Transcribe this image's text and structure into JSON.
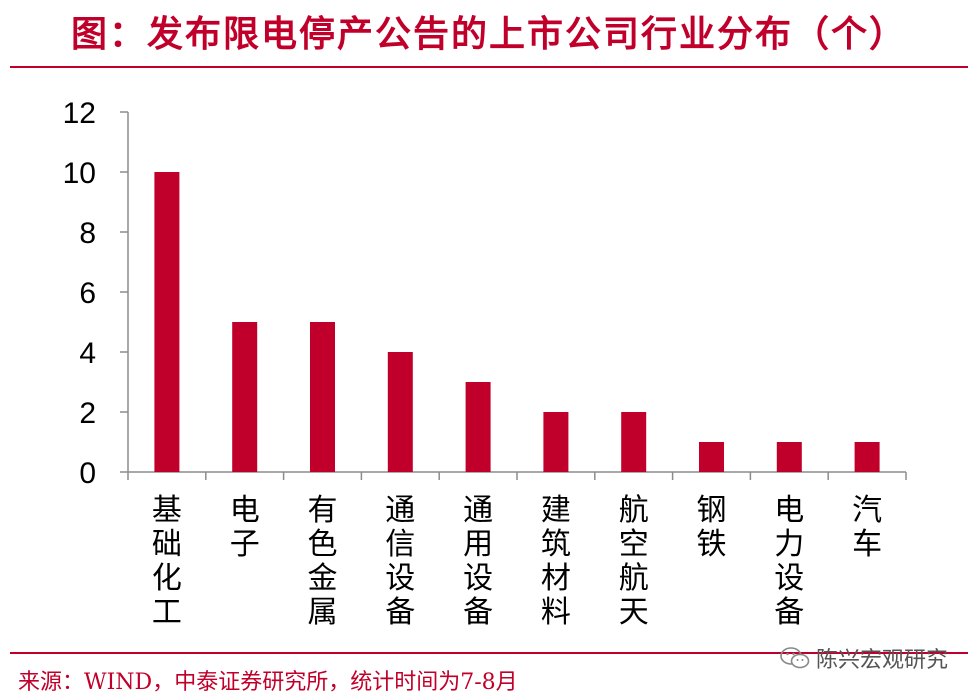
{
  "header": {
    "title": "图：发布限电停产公告的上市公司行业分布（个）"
  },
  "footer": {
    "source": "来源：WIND，中泰证券研究所，统计时间为7-8月",
    "watermark": "陈兴宏观研究",
    "watermark_icon": "wechat-icon"
  },
  "colors": {
    "accent": "#c0002a",
    "bar": "#c0002a"
  },
  "chart_data": {
    "type": "bar",
    "title": "图：发布限电停产公告的上市公司行业分布（个）",
    "categories": [
      "基础化工",
      "电子",
      "有色金属",
      "通信设备",
      "通用设备",
      "建筑材料",
      "航空航天",
      "钢铁",
      "电力设备",
      "汽车"
    ],
    "values": [
      10,
      5,
      5,
      4,
      3,
      2,
      2,
      1,
      1,
      1
    ],
    "ylim": [
      0,
      12
    ],
    "yticks": [
      0,
      2,
      4,
      6,
      8,
      10,
      12
    ],
    "xlabel": "",
    "ylabel": "",
    "grid": false,
    "legend": "none"
  }
}
